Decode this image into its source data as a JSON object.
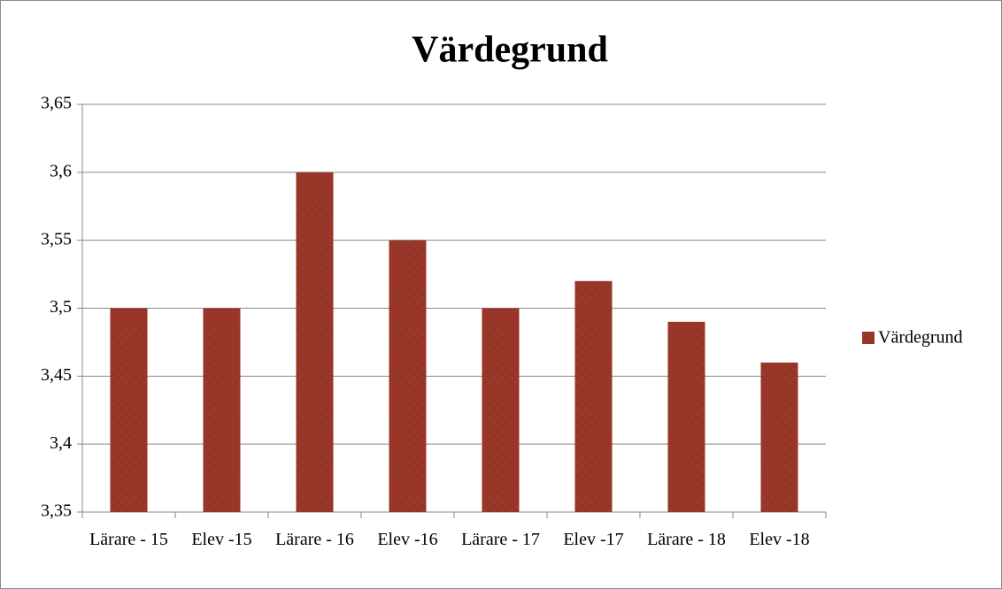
{
  "chart_data": {
    "type": "bar",
    "title": "Värdegrund",
    "categories": [
      "Lärare - 15",
      "Elev -15",
      "Lärare - 16",
      "Elev -16",
      "Lärare - 17",
      "Elev -17",
      "Lärare - 18",
      "Elev -18"
    ],
    "series": [
      {
        "name": "Värdegrund",
        "color": "#9b3426",
        "values": [
          3.5,
          3.5,
          3.6,
          3.55,
          3.5,
          3.52,
          3.49,
          3.46
        ]
      }
    ],
    "ylim": [
      3.35,
      3.65
    ],
    "yticks": [
      {
        "value": 3.35,
        "label": "3,35"
      },
      {
        "value": 3.4,
        "label": "3,4"
      },
      {
        "value": 3.45,
        "label": "3,45"
      },
      {
        "value": 3.5,
        "label": "3,5"
      },
      {
        "value": 3.55,
        "label": "3,55"
      },
      {
        "value": 3.6,
        "label": "3,6"
      },
      {
        "value": 3.65,
        "label": "3,65"
      }
    ],
    "grid": true,
    "legend": "right"
  }
}
